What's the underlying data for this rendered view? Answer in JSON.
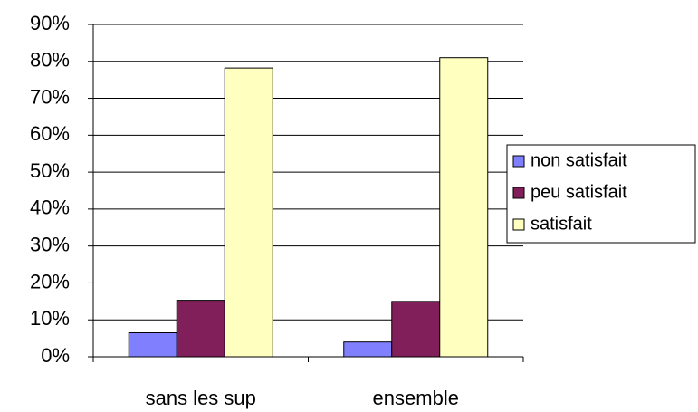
{
  "chart_data": {
    "type": "bar",
    "categories": [
      "sans les sup",
      "ensemble"
    ],
    "series": [
      {
        "name": "non satisfait",
        "color": "#8080ff",
        "values": [
          6.5,
          4
        ]
      },
      {
        "name": "peu satisfait",
        "color": "#801f5a",
        "values": [
          15.3,
          15
        ]
      },
      {
        "name": "satisfait",
        "color": "#ffffc0",
        "values": [
          78.2,
          81
        ]
      }
    ],
    "ylim": [
      0,
      90
    ],
    "yticks": [
      {
        "value": 0,
        "label": "0%"
      },
      {
        "value": 10,
        "label": "10%"
      },
      {
        "value": 20,
        "label": "20%"
      },
      {
        "value": 30,
        "label": "30%"
      },
      {
        "value": 40,
        "label": "40%"
      },
      {
        "value": 50,
        "label": "50%"
      },
      {
        "value": 60,
        "label": "60%"
      },
      {
        "value": 70,
        "label": "70%"
      },
      {
        "value": 80,
        "label": "80%"
      },
      {
        "value": 90,
        "label": "90%"
      }
    ],
    "grid": true,
    "legend": "right"
  }
}
